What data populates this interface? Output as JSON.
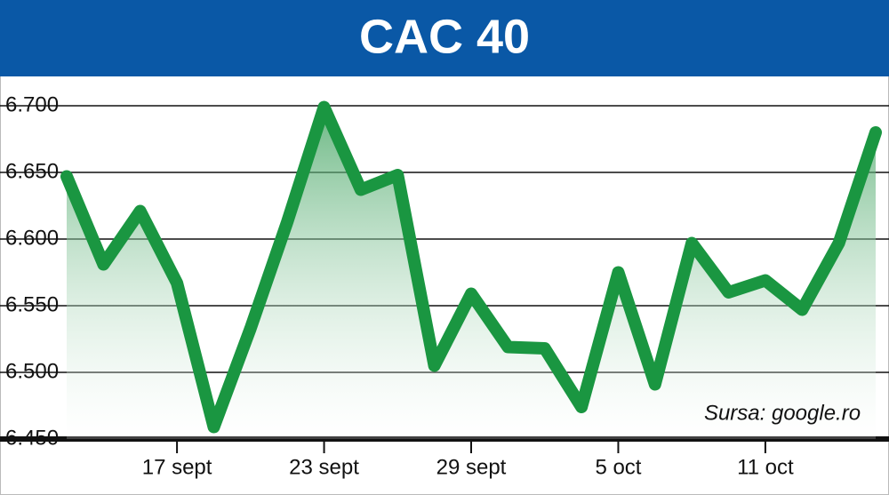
{
  "chart_data": {
    "type": "line",
    "title": "CAC 40",
    "annotation": "Sursa: google.ro",
    "categories": [
      null,
      null,
      null,
      "17 sept",
      null,
      null,
      null,
      "23 sept",
      null,
      null,
      null,
      "29 sept",
      null,
      null,
      null,
      "5 oct",
      null,
      null,
      null,
      "11 oct",
      null,
      null,
      null
    ],
    "series": [
      {
        "name": "CAC 40",
        "color": "#1a9641",
        "values": [
          6647,
          6581,
          6621,
          6567,
          6459,
          6533,
          6613,
          6699,
          6637,
          6648,
          6505,
          6559,
          6519,
          6518,
          6474,
          6575,
          6491,
          6597,
          6560,
          6569,
          6547,
          6597,
          6680
        ]
      }
    ],
    "ylim": [
      6450,
      6725
    ],
    "yticks": [
      {
        "value": 6450,
        "label": "6.450"
      },
      {
        "value": 6500,
        "label": "6.500"
      },
      {
        "value": 6550,
        "label": "6.550"
      },
      {
        "value": 6600,
        "label": "6.600"
      },
      {
        "value": 6650,
        "label": "6.650"
      },
      {
        "value": 6700,
        "label": "6.700"
      }
    ],
    "grid": true
  }
}
